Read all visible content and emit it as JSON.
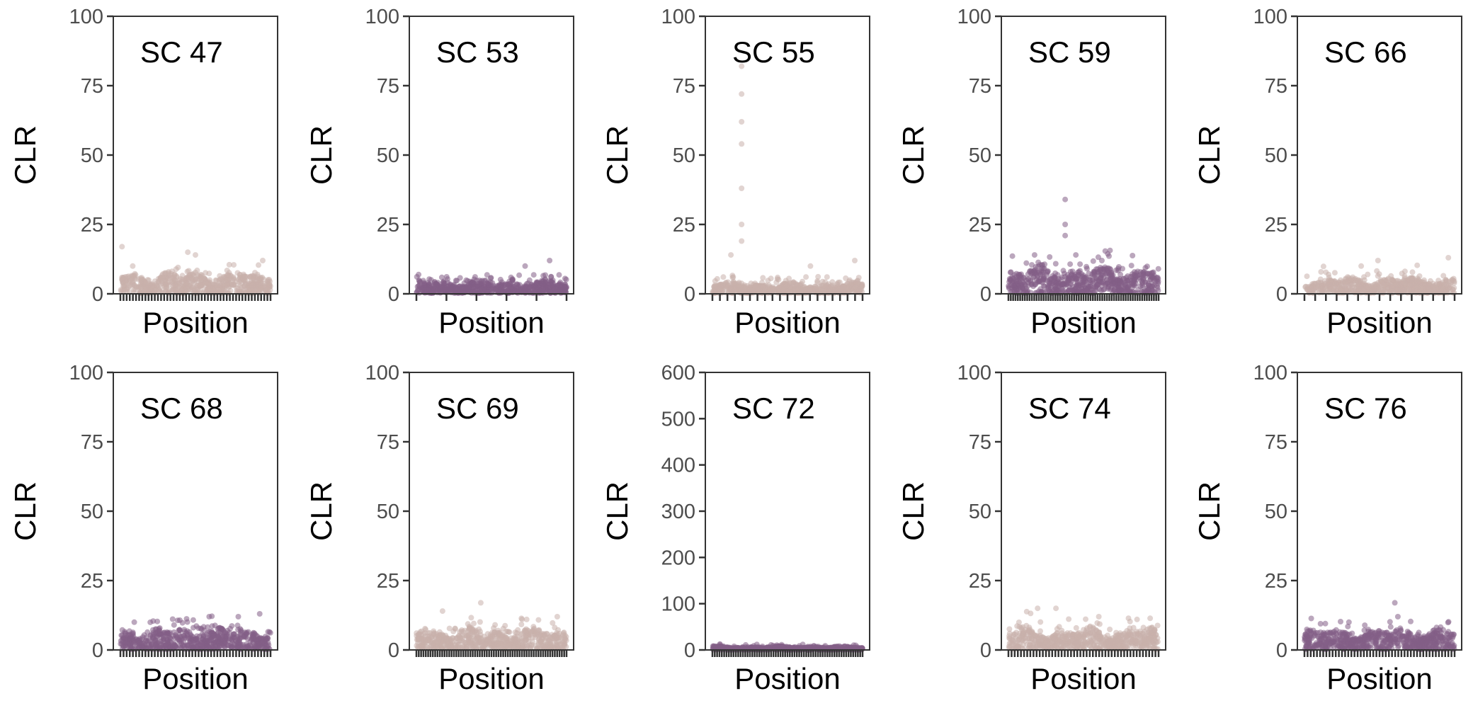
{
  "chart_data": [
    {
      "type": "scatter",
      "title": "SC 47",
      "xlabel": "Position",
      "ylabel": "CLR",
      "ylim": [
        0,
        100
      ],
      "yticks": [
        0,
        25,
        50,
        75,
        100
      ],
      "x_ticks": 49,
      "color": "#c9b1ab",
      "base": 4,
      "noise": 4,
      "spikes": [
        [
          0.02,
          17
        ],
        [
          0.09,
          10
        ],
        [
          0.45,
          15
        ],
        [
          0.5,
          14
        ],
        [
          0.94,
          12
        ]
      ]
    },
    {
      "type": "scatter",
      "title": "SC 53",
      "xlabel": "Position",
      "ylabel": "CLR",
      "ylim": [
        0,
        100
      ],
      "yticks": [
        0,
        25,
        50,
        75,
        100
      ],
      "x_ticks": 6,
      "color": "#835f87",
      "base": 2.5,
      "noise": 4,
      "spikes": [
        [
          0.15,
          4
        ],
        [
          0.72,
          10
        ],
        [
          0.88,
          12
        ]
      ]
    },
    {
      "type": "scatter",
      "title": "SC 55",
      "xlabel": "Position",
      "ylabel": "CLR",
      "ylim": [
        0,
        100
      ],
      "yticks": [
        0,
        25,
        50,
        75,
        100
      ],
      "x_ticks": 21,
      "color": "#c9b1ab",
      "base": 2,
      "noise": 4,
      "spikes": [
        [
          0.2,
          82
        ],
        [
          0.2,
          72
        ],
        [
          0.2,
          62
        ],
        [
          0.2,
          54
        ],
        [
          0.2,
          38
        ],
        [
          0.2,
          25
        ],
        [
          0.2,
          19
        ],
        [
          0.13,
          14
        ],
        [
          0.65,
          10
        ],
        [
          0.94,
          12
        ]
      ]
    },
    {
      "type": "scatter",
      "title": "SC 59",
      "xlabel": "Position",
      "ylabel": "CLR",
      "ylim": [
        0,
        100
      ],
      "yticks": [
        0,
        25,
        50,
        75,
        100
      ],
      "x_ticks": 65,
      "color": "#835f87",
      "base": 5,
      "noise": 7,
      "spikes": [
        [
          0.38,
          34
        ],
        [
          0.38,
          25
        ],
        [
          0.38,
          21
        ],
        [
          0.18,
          14
        ],
        [
          0.45,
          14
        ],
        [
          0.62,
          12
        ]
      ]
    },
    {
      "type": "scatter",
      "title": "SC 66",
      "xlabel": "Position",
      "ylabel": "CLR",
      "ylim": [
        0,
        100
      ],
      "yticks": [
        0,
        25,
        50,
        75,
        100
      ],
      "x_ticks": 15,
      "color": "#c9b1ab",
      "base": 3,
      "noise": 5,
      "spikes": [
        [
          0.49,
          12
        ],
        [
          0.38,
          10
        ],
        [
          0.95,
          13
        ]
      ]
    },
    {
      "type": "scatter",
      "title": "SC 68",
      "xlabel": "Position",
      "ylabel": "CLR",
      "ylim": [
        0,
        100
      ],
      "yticks": [
        0,
        25,
        50,
        75,
        100
      ],
      "x_ticks": 49,
      "color": "#835f87",
      "base": 4,
      "noise": 6,
      "spikes": [
        [
          0.1,
          10
        ],
        [
          0.36,
          9
        ],
        [
          0.59,
          12
        ],
        [
          0.78,
          12
        ],
        [
          0.92,
          13
        ]
      ]
    },
    {
      "type": "scatter",
      "title": "SC 69",
      "xlabel": "Position",
      "ylabel": "CLR",
      "ylim": [
        0,
        100
      ],
      "yticks": [
        0,
        25,
        50,
        75,
        100
      ],
      "x_ticks": 65,
      "color": "#c9b1ab",
      "base": 4,
      "noise": 6,
      "spikes": [
        [
          0.18,
          14
        ],
        [
          0.43,
          17
        ],
        [
          0.7,
          11
        ],
        [
          0.93,
          12
        ]
      ]
    },
    {
      "type": "scatter",
      "title": "SC 72",
      "xlabel": "Position",
      "ylabel": "CLR",
      "ylim": [
        0,
        600
      ],
      "yticks": [
        0,
        100,
        200,
        300,
        400,
        500,
        600
      ],
      "x_ticks": 65,
      "color": "#835f87",
      "base": 4,
      "noise": 6,
      "spikes": [
        [
          0.3,
          12
        ],
        [
          0.6,
          12
        ]
      ]
    },
    {
      "type": "scatter",
      "title": "SC 74",
      "xlabel": "Position",
      "ylabel": "CLR",
      "ylim": [
        0,
        100
      ],
      "yticks": [
        0,
        25,
        50,
        75,
        100
      ],
      "x_ticks": 49,
      "color": "#c9b1ab",
      "base": 4,
      "noise": 6,
      "spikes": [
        [
          0.2,
          15
        ],
        [
          0.32,
          15
        ],
        [
          0.6,
          12
        ],
        [
          0.85,
          11
        ]
      ]
    },
    {
      "type": "scatter",
      "title": "SC 76",
      "xlabel": "Position",
      "ylabel": "CLR",
      "ylim": [
        0,
        100
      ],
      "yticks": [
        0,
        25,
        50,
        75,
        100
      ],
      "x_ticks": 49,
      "color": "#835f87",
      "base": 4,
      "noise": 5,
      "spikes": [
        [
          0.6,
          17
        ],
        [
          0.62,
          12
        ],
        [
          0.3,
          10
        ]
      ]
    }
  ]
}
